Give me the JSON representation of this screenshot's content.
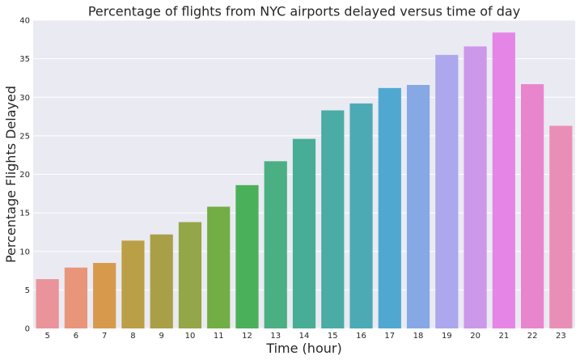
{
  "chart_data": {
    "type": "bar",
    "title": "Percentage of flights from NYC airports delayed versus time of day",
    "xlabel": "Time (hour)",
    "ylabel": "Percentage Flights Delayed",
    "categories": [
      "5",
      "6",
      "7",
      "8",
      "9",
      "10",
      "11",
      "12",
      "13",
      "14",
      "15",
      "16",
      "17",
      "18",
      "19",
      "20",
      "21",
      "22",
      "23"
    ],
    "values": [
      6.4,
      7.9,
      8.5,
      11.4,
      12.2,
      13.8,
      15.8,
      18.6,
      21.7,
      24.6,
      28.3,
      29.2,
      31.2,
      31.6,
      35.5,
      36.6,
      38.4,
      31.7,
      26.3
    ],
    "ylim": [
      0,
      40
    ],
    "yticks": [
      "0",
      "5",
      "10",
      "15",
      "20",
      "25",
      "30",
      "35",
      "40"
    ],
    "grid": true,
    "colors": [
      "#ea939a",
      "#e9957a",
      "#d79a4c",
      "#bb9f46",
      "#a99f47",
      "#93a648",
      "#72ad45",
      "#4bb05a",
      "#4baf84",
      "#48ad96",
      "#4aaca4",
      "#4caab4",
      "#50a8d0",
      "#86a9e5",
      "#ada7ee",
      "#cc98ea",
      "#e586e6",
      "#e985cd",
      "#e98fb7"
    ],
    "background": "#eaeaf2"
  }
}
